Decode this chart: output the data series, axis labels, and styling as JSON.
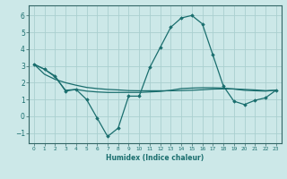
{
  "xlabel": "Humidex (Indice chaleur)",
  "background_color": "#cce8e8",
  "grid_color": "#aacfcf",
  "line_color": "#1a6e6e",
  "xlim": [
    -0.5,
    23.5
  ],
  "ylim": [
    -1.6,
    6.6
  ],
  "xticks": [
    0,
    1,
    2,
    3,
    4,
    5,
    6,
    7,
    8,
    9,
    10,
    11,
    12,
    13,
    14,
    15,
    16,
    17,
    18,
    19,
    20,
    21,
    22,
    23
  ],
  "yticks": [
    -1,
    0,
    1,
    2,
    3,
    4,
    5,
    6
  ],
  "line1_x": [
    0,
    1,
    2,
    3,
    4,
    5,
    6,
    7,
    8,
    9,
    10,
    11,
    12,
    13,
    14,
    15,
    16,
    17,
    18,
    19,
    20,
    21,
    22,
    23
  ],
  "line1_y": [
    3.1,
    2.8,
    2.4,
    1.5,
    1.6,
    1.0,
    -0.1,
    -1.2,
    -0.7,
    1.2,
    1.2,
    2.9,
    4.1,
    5.3,
    5.85,
    6.0,
    5.5,
    3.65,
    1.8,
    0.9,
    0.7,
    0.95,
    1.1,
    1.55
  ],
  "line2_x": [
    0,
    1,
    2,
    3,
    4,
    5,
    6,
    7,
    8,
    9,
    10,
    11,
    12,
    13,
    14,
    15,
    16,
    17,
    18,
    19,
    20,
    21,
    22,
    23
  ],
  "line2_y": [
    3.1,
    2.8,
    2.35,
    1.55,
    1.6,
    1.5,
    1.45,
    1.42,
    1.42,
    1.42,
    1.42,
    1.45,
    1.48,
    1.55,
    1.65,
    1.68,
    1.7,
    1.7,
    1.68,
    1.62,
    1.55,
    1.52,
    1.5,
    1.55
  ],
  "line3_x": [
    0,
    1,
    2,
    3,
    4,
    5,
    6,
    7,
    8,
    9,
    10,
    11,
    12,
    13,
    14,
    15,
    16,
    17,
    18,
    19,
    20,
    21,
    22,
    23
  ],
  "line3_y": [
    3.1,
    2.5,
    2.2,
    2.0,
    1.85,
    1.72,
    1.65,
    1.6,
    1.57,
    1.53,
    1.52,
    1.52,
    1.52,
    1.52,
    1.53,
    1.55,
    1.58,
    1.62,
    1.63,
    1.63,
    1.6,
    1.57,
    1.53,
    1.55
  ]
}
